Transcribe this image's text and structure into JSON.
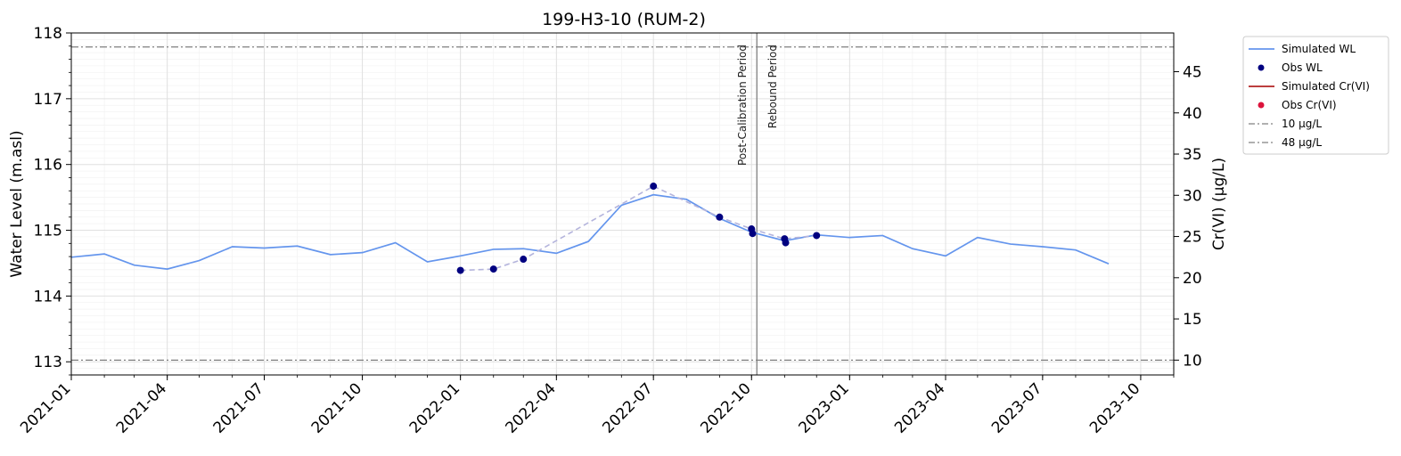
{
  "chart_data": {
    "type": "line",
    "title": "199-H3-10 (RUM-2)",
    "xlabel": "",
    "ylabel": "Water Level (m.asl)",
    "ylabel_right": "Cr(VI) (µg/L)",
    "xlim": [
      "2021-01-01",
      "2023-11-01"
    ],
    "ylim": [
      112.8,
      118.0
    ],
    "ylim_right": [
      8.2,
      49.7
    ],
    "x_ticks": [
      "2021-01",
      "2021-04",
      "2021-07",
      "2021-10",
      "2022-01",
      "2022-04",
      "2022-07",
      "2022-10",
      "2023-01",
      "2023-04",
      "2023-07",
      "2023-10"
    ],
    "y_ticks": [
      "113",
      "114",
      "115",
      "116",
      "117",
      "118"
    ],
    "y_ticks_right": [
      "10",
      "15",
      "20",
      "25",
      "30",
      "35",
      "40",
      "45"
    ],
    "grid": true,
    "legend_position": "outside-top-right",
    "series": [
      {
        "name": "Simulated WL",
        "kind": "line",
        "color": "#6495ED",
        "axis": "left",
        "x": [
          "2021-01-01",
          "2021-02-01",
          "2021-03-01",
          "2021-04-01",
          "2021-05-01",
          "2021-06-01",
          "2021-07-01",
          "2021-08-01",
          "2021-09-01",
          "2021-10-01",
          "2021-11-01",
          "2021-12-01",
          "2022-01-01",
          "2022-02-01",
          "2022-03-01",
          "2022-04-01",
          "2022-05-01",
          "2022-06-01",
          "2022-07-01",
          "2022-08-01",
          "2022-09-01",
          "2022-10-01",
          "2022-11-01",
          "2022-12-01",
          "2023-01-01",
          "2023-02-01",
          "2023-03-01",
          "2023-04-01",
          "2023-05-01",
          "2023-06-01",
          "2023-07-01",
          "2023-08-01",
          "2023-09-01"
        ],
        "y": [
          114.59,
          114.64,
          114.47,
          114.41,
          114.54,
          114.75,
          114.73,
          114.76,
          114.63,
          114.66,
          114.81,
          114.52,
          114.61,
          114.71,
          114.72,
          114.65,
          114.83,
          115.38,
          115.54,
          115.47,
          115.18,
          114.97,
          114.84,
          114.93,
          114.89,
          114.92,
          114.72,
          114.61,
          114.89,
          114.79,
          114.75,
          114.7,
          114.49
        ]
      },
      {
        "name": "Obs WL",
        "kind": "scatter",
        "color": "#000080",
        "axis": "left",
        "x": [
          "2022-01-01",
          "2022-02-01",
          "2022-03-01",
          "2022-07-01",
          "2022-09-01",
          "2022-10-01",
          "2022-10-02",
          "2022-11-01",
          "2022-11-02",
          "2022-12-01"
        ],
        "y": [
          114.39,
          114.41,
          114.56,
          115.67,
          115.2,
          115.02,
          114.95,
          114.87,
          114.81,
          114.92
        ]
      },
      {
        "name": "",
        "kind": "dashed-line",
        "color": "#B4B4DC",
        "axis": "left",
        "x": [
          "2022-01-01",
          "2022-02-01",
          "2022-03-01",
          "2022-07-01",
          "2022-09-01",
          "2022-10-01",
          "2022-11-01",
          "2022-12-01"
        ],
        "y": [
          114.39,
          114.41,
          114.56,
          115.67,
          115.2,
          115.02,
          114.87,
          114.92
        ]
      },
      {
        "name": "Simulated Cr(VI)",
        "kind": "legend-only-line",
        "color": "#B22222",
        "axis": "right",
        "x": [],
        "y": []
      },
      {
        "name": "Obs Cr(VI)",
        "kind": "legend-only-point",
        "color": "#DC143C",
        "axis": "right",
        "x": [],
        "y": []
      },
      {
        "name": "10 µg/L",
        "kind": "hline",
        "color": "#808080",
        "axis": "right",
        "y": 10
      },
      {
        "name": "48 µg/L",
        "kind": "hline",
        "color": "#808080",
        "axis": "right",
        "y": 48
      }
    ],
    "period_marker": {
      "x": "2022-10-06",
      "left_label": "Post-Calibration Period",
      "right_label": "Rebound Period"
    }
  }
}
